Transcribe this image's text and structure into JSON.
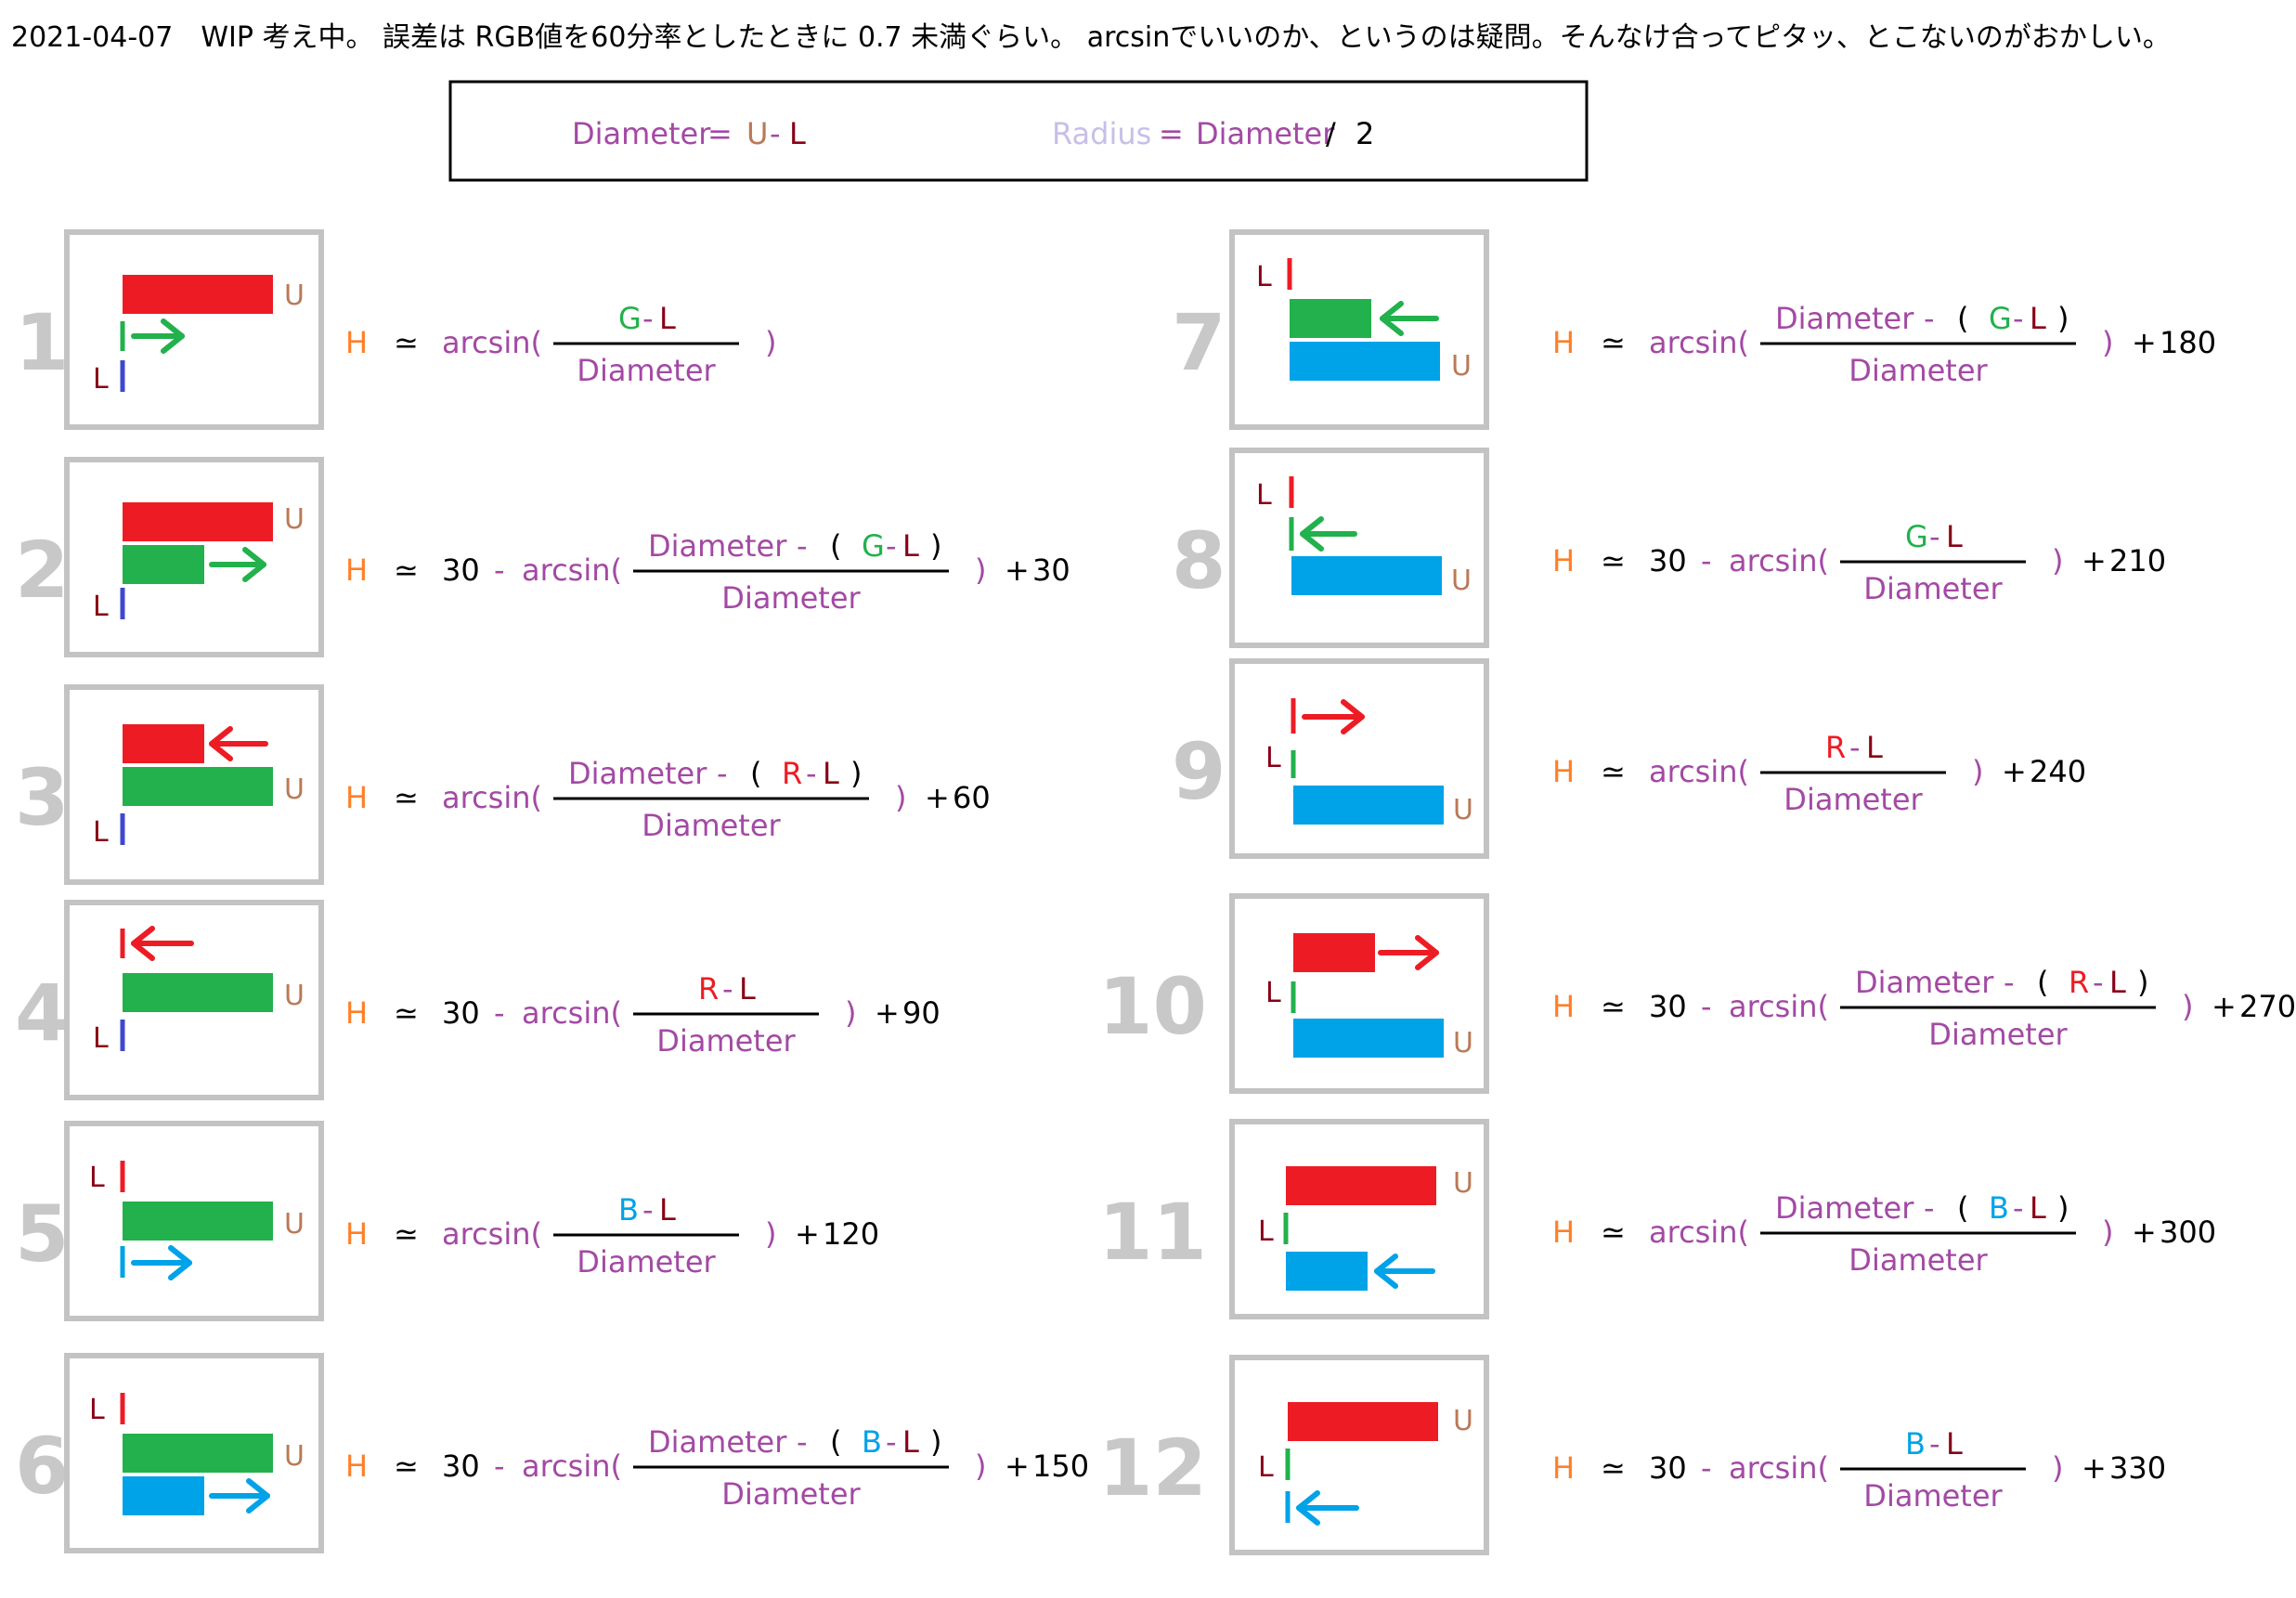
{
  "header": {
    "note": "2021-04-07　WIP 考え中。 誤差は RGB値を60分率としたときに 0.7 未満ぐらい。 arcsinでいいのか、というのは疑問。そんなけ合ってピタッ、とこないのがおかしい。"
  },
  "definitions": {
    "diameter_word": "Diameter",
    "equals": "=",
    "u": "U",
    "minus": "-",
    "l": "L",
    "radius_word": "Radius",
    "divide": "/",
    "two": "2"
  },
  "symbols": {
    "h": "H",
    "approx": "≃",
    "arcsin_open": "arcsin(",
    "close_paren": ")",
    "thirty": "30",
    "minus": "-",
    "diameter": "Diameter",
    "open_paren": "(",
    "plus": "+",
    "u": "U",
    "l": "L"
  },
  "colors": {
    "red": "#ed1c24",
    "green": "#22b14c",
    "blue": "#00a2e8",
    "navy": "#3f48cc",
    "purple": "#a349a4",
    "orange": "#ff7f27",
    "brown": "#b97a57",
    "maroon": "#880015",
    "lavender": "#c8bfe7",
    "gray": "#c3c3c3"
  },
  "panels": [
    {
      "number": "1",
      "num_var": "G",
      "has_diameter": false,
      "has_thirty": false,
      "offset": ""
    },
    {
      "number": "2",
      "num_var": "G",
      "has_diameter": true,
      "has_thirty": true,
      "offset": "30"
    },
    {
      "number": "3",
      "num_var": "R",
      "has_diameter": true,
      "has_thirty": false,
      "offset": "60"
    },
    {
      "number": "4",
      "num_var": "R",
      "has_diameter": false,
      "has_thirty": true,
      "offset": "90"
    },
    {
      "number": "5",
      "num_var": "B",
      "has_diameter": false,
      "has_thirty": false,
      "offset": "120"
    },
    {
      "number": "6",
      "num_var": "B",
      "has_diameter": true,
      "has_thirty": true,
      "offset": "150"
    },
    {
      "number": "7",
      "num_var": "G",
      "has_diameter": true,
      "has_thirty": false,
      "offset": "180"
    },
    {
      "number": "8",
      "num_var": "G",
      "has_diameter": false,
      "has_thirty": true,
      "offset": "210"
    },
    {
      "number": "9",
      "num_var": "R",
      "has_diameter": false,
      "has_thirty": false,
      "offset": "240"
    },
    {
      "number": "10",
      "num_var": "R",
      "has_diameter": true,
      "has_thirty": true,
      "offset": "270"
    },
    {
      "number": "11",
      "num_var": "B",
      "has_diameter": true,
      "has_thirty": false,
      "offset": "300"
    },
    {
      "number": "12",
      "num_var": "B",
      "has_diameter": false,
      "has_thirty": true,
      "offset": "330"
    }
  ]
}
